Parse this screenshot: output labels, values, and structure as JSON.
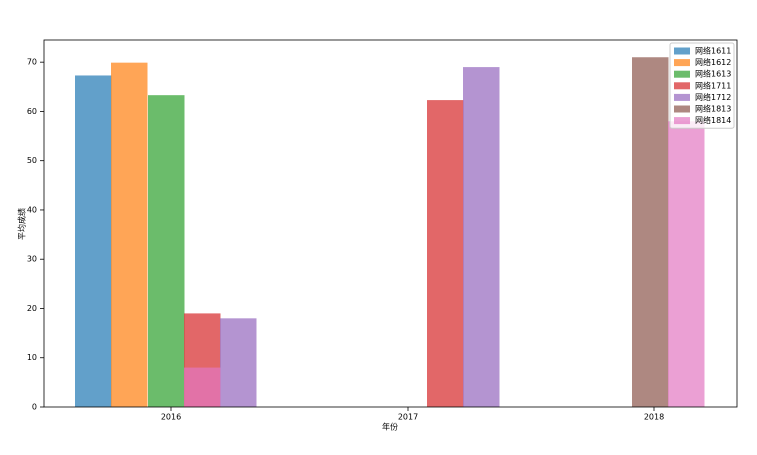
{
  "chart_data": {
    "type": "bar",
    "x_label": "年份",
    "y_label": "平均成绩",
    "categories": [
      "2016",
      "2017",
      "2018"
    ],
    "series": [
      {
        "name": "网络1611",
        "color": "#1f77b4",
        "values": [
          67.3,
          null,
          null
        ]
      },
      {
        "name": "网络1612",
        "color": "#ff7f0e",
        "values": [
          69.9,
          null,
          null
        ]
      },
      {
        "name": "网络1613",
        "color": "#2ca02c",
        "values": [
          63.3,
          null,
          null
        ]
      },
      {
        "name": "网络1711",
        "color": "#d62728",
        "values": [
          19,
          62.3,
          null
        ]
      },
      {
        "name": "网络1712",
        "color": "#9467bd",
        "values": [
          18,
          69,
          null
        ]
      },
      {
        "name": "网络1813",
        "color": "#8c564b",
        "values": [
          null,
          null,
          71
        ]
      },
      {
        "name": "网络1814",
        "color": "#e377c2",
        "values": [
          8,
          null,
          58
        ]
      }
    ],
    "ylim": [
      0,
      74.5
    ],
    "yticks": [
      0,
      10,
      20,
      30,
      40,
      50,
      60,
      70
    ],
    "legend": "upper right"
  }
}
